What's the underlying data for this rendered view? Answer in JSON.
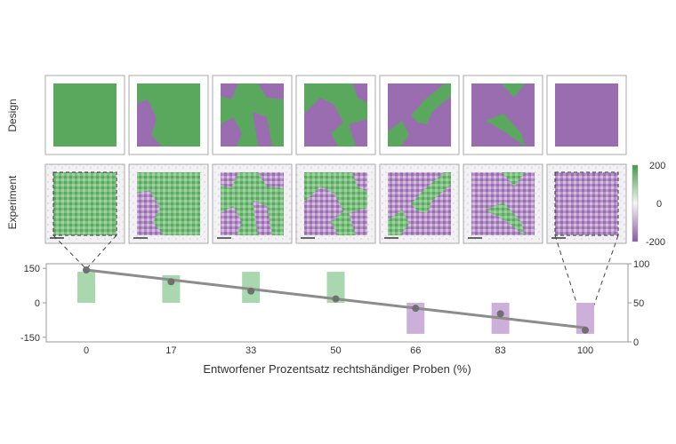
{
  "row_labels": {
    "design": "Design",
    "experiment": "Experiment"
  },
  "colorbar": {
    "ticks": [
      "200",
      "0",
      "-200"
    ]
  },
  "colors": {
    "green": "#5aa85e",
    "purple": "#9a6db0",
    "bar_green": "#a9d8ae",
    "bar_purple": "#cdb0da",
    "trend": "#8c8c8c",
    "point": "#707070"
  },
  "chart_data": {
    "type": "bar",
    "categories": [
      "0",
      "17",
      "33",
      "50",
      "66",
      "83",
      "100"
    ],
    "xlabel": "Entworfener Prozentsatz rechtshändiger Proben (%)",
    "left_axis": {
      "ticks": [
        "150",
        "0",
        "-150"
      ],
      "range": [
        -170,
        170
      ]
    },
    "right_axis": {
      "ticks": [
        "100",
        "50",
        "0"
      ],
      "range": [
        0,
        100
      ]
    },
    "bars": [
      {
        "category": "0",
        "value": 135
      },
      {
        "category": "17",
        "value": 120
      },
      {
        "category": "33",
        "value": 135
      },
      {
        "category": "50",
        "value": 135
      },
      {
        "category": "66",
        "value": -135
      },
      {
        "category": "83",
        "value": -135
      },
      {
        "category": "100",
        "value": -135
      }
    ],
    "points": [
      {
        "x": 0,
        "y": 92
      },
      {
        "x": 17,
        "y": 77
      },
      {
        "x": 33,
        "y": 65
      },
      {
        "x": 50,
        "y": 55
      },
      {
        "x": 66,
        "y": 43
      },
      {
        "x": 83,
        "y": 36
      },
      {
        "x": 100,
        "y": 15
      }
    ],
    "trend_line": {
      "from": {
        "x": 0,
        "y": 92
      },
      "to": {
        "x": 100,
        "y": 18
      }
    },
    "grid": false
  }
}
